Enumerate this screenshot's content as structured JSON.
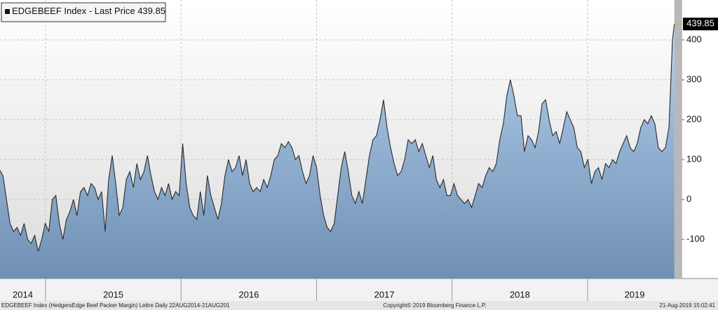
{
  "chart_data": {
    "type": "area",
    "series": [
      {
        "name": "EDGEBEEF Index - Last Price",
        "color": "#2a2a2a",
        "x": [
          2014.66,
          2014.686,
          2014.712,
          2014.738,
          2014.764,
          2014.79,
          2014.816,
          2014.842,
          2014.868,
          2014.894,
          2014.92,
          2014.946,
          2014.972,
          2014.998,
          2015.024,
          2015.05,
          2015.076,
          2015.102,
          2015.128,
          2015.154,
          2015.18,
          2015.206,
          2015.232,
          2015.258,
          2015.284,
          2015.31,
          2015.336,
          2015.362,
          2015.388,
          2015.414,
          2015.44,
          2015.466,
          2015.492,
          2015.518,
          2015.544,
          2015.57,
          2015.596,
          2015.622,
          2015.648,
          2015.674,
          2015.7,
          2015.726,
          2015.752,
          2015.778,
          2015.804,
          2015.83,
          2015.856,
          2015.882,
          2015.908,
          2015.934,
          2015.96,
          2015.986,
          2016.012,
          2016.038,
          2016.064,
          2016.09,
          2016.116,
          2016.142,
          2016.168,
          2016.194,
          2016.22,
          2016.246,
          2016.272,
          2016.298,
          2016.324,
          2016.35,
          2016.376,
          2016.402,
          2016.428,
          2016.454,
          2016.48,
          2016.506,
          2016.532,
          2016.558,
          2016.584,
          2016.61,
          2016.636,
          2016.662,
          2016.688,
          2016.714,
          2016.74,
          2016.766,
          2016.792,
          2016.818,
          2016.844,
          2016.87,
          2016.896,
          2016.922,
          2016.948,
          2016.974,
          2017.0,
          2017.026,
          2017.052,
          2017.078,
          2017.104,
          2017.13,
          2017.156,
          2017.182,
          2017.208,
          2017.234,
          2017.26,
          2017.286,
          2017.312,
          2017.338,
          2017.364,
          2017.39,
          2017.416,
          2017.442,
          2017.468,
          2017.494,
          2017.52,
          2017.546,
          2017.572,
          2017.598,
          2017.624,
          2017.65,
          2017.676,
          2017.702,
          2017.728,
          2017.754,
          2017.78,
          2017.806,
          2017.832,
          2017.858,
          2017.884,
          2017.91,
          2017.936,
          2017.962,
          2017.988,
          2018.014,
          2018.04,
          2018.066,
          2018.092,
          2018.118,
          2018.144,
          2018.17,
          2018.196,
          2018.222,
          2018.248,
          2018.274,
          2018.3,
          2018.326,
          2018.352,
          2018.378,
          2018.404,
          2018.43,
          2018.456,
          2018.482,
          2018.508,
          2018.534,
          2018.56,
          2018.586,
          2018.612,
          2018.638,
          2018.664,
          2018.69,
          2018.716,
          2018.742,
          2018.768,
          2018.794,
          2018.82,
          2018.846,
          2018.872,
          2018.898,
          2018.924,
          2018.95,
          2018.976,
          2019.002,
          2019.028,
          2019.054,
          2019.08,
          2019.106,
          2019.132,
          2019.158,
          2019.184,
          2019.21,
          2019.236,
          2019.262,
          2019.288,
          2019.314,
          2019.34,
          2019.366,
          2019.392,
          2019.418,
          2019.444,
          2019.47,
          2019.496,
          2019.522,
          2019.548,
          2019.574,
          2019.6,
          2019.626,
          2019.64
        ],
        "values": [
          75,
          60,
          0,
          -60,
          -80,
          -70,
          -90,
          -60,
          -100,
          -110,
          -90,
          -130,
          -100,
          -60,
          -80,
          0,
          10,
          -60,
          -100,
          -50,
          -30,
          0,
          -40,
          20,
          30,
          10,
          40,
          30,
          0,
          20,
          -80,
          50,
          110,
          40,
          -40,
          -20,
          50,
          70,
          30,
          90,
          50,
          70,
          110,
          60,
          20,
          0,
          30,
          10,
          40,
          0,
          20,
          10,
          140,
          40,
          -20,
          -40,
          -50,
          20,
          -40,
          60,
          10,
          -20,
          -50,
          -10,
          60,
          100,
          70,
          80,
          110,
          60,
          100,
          40,
          20,
          30,
          20,
          50,
          30,
          60,
          100,
          110,
          140,
          130,
          145,
          130,
          100,
          110,
          70,
          40,
          60,
          110,
          80,
          10,
          -40,
          -70,
          -80,
          -60,
          10,
          80,
          120,
          70,
          10,
          -10,
          20,
          -10,
          50,
          110,
          150,
          160,
          200,
          250,
          180,
          130,
          90,
          60,
          70,
          100,
          150,
          140,
          150,
          120,
          140,
          110,
          80,
          110,
          50,
          30,
          50,
          10,
          10,
          40,
          10,
          0,
          -10,
          0,
          -20,
          10,
          40,
          30,
          60,
          80,
          70,
          90,
          150,
          190,
          260,
          300,
          260,
          210,
          210,
          120,
          160,
          150,
          130,
          170,
          240,
          250,
          200,
          160,
          170,
          140,
          180,
          220,
          200,
          180,
          130,
          120,
          80,
          100,
          40,
          70,
          80,
          50,
          90,
          80,
          100,
          90,
          120,
          140,
          160,
          130,
          120,
          140,
          180,
          200,
          190,
          210,
          190,
          130,
          120,
          130,
          180,
          400,
          439.85
        ]
      }
    ],
    "xlim": [
      2014.664,
      2019.693
    ],
    "xticks": [
      2015,
      2016,
      2017,
      2018,
      2019
    ],
    "year_labels": [
      "2014",
      "2015",
      "2016",
      "2017",
      "2018",
      "2019"
    ],
    "ylim": [
      -198,
      500
    ],
    "yticks": [
      -100,
      0,
      100,
      200,
      300,
      400
    ],
    "grid": true,
    "footer_left": "EDGEBEEF Index (HedgersEdge Beef Packer Margin) Lettre  Daily 22AUG2014-21AUG201",
    "footer_center": "Copyright© 2019 Bloomberg Finance L.P.",
    "footer_right": "21-Aug-2019 15:02:41"
  }
}
